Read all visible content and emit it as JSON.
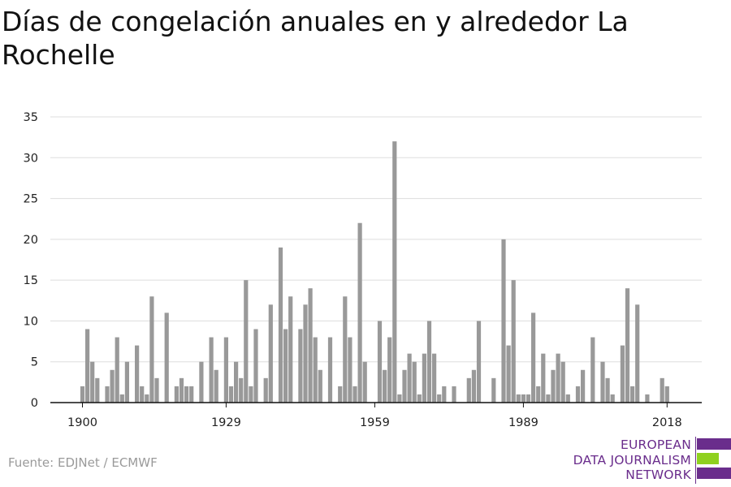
{
  "title": "Días de congelación anuales en y alrededor La Rochelle",
  "source": "Fuente: EDJNet / ECMWF",
  "logo": {
    "lines": [
      "EUROPEAN",
      "DATA JOURNALISM",
      "NETWORK"
    ],
    "colors": {
      "purple": "#6a2d8c",
      "green": "#8fd11f"
    }
  },
  "chart_data": {
    "type": "bar",
    "title": "Días de congelación anuales en y alrededor La Rochelle",
    "xlabel": "",
    "ylabel": "",
    "x": [
      1900,
      1901,
      1902,
      1903,
      1904,
      1905,
      1906,
      1907,
      1908,
      1909,
      1910,
      1911,
      1912,
      1913,
      1914,
      1915,
      1916,
      1917,
      1918,
      1919,
      1920,
      1921,
      1922,
      1923,
      1924,
      1925,
      1926,
      1927,
      1928,
      1929,
      1930,
      1931,
      1932,
      1933,
      1934,
      1935,
      1936,
      1937,
      1938,
      1939,
      1940,
      1941,
      1942,
      1943,
      1944,
      1945,
      1946,
      1947,
      1948,
      1949,
      1950,
      1951,
      1952,
      1953,
      1954,
      1955,
      1956,
      1957,
      1958,
      1959,
      1960,
      1961,
      1962,
      1963,
      1964,
      1965,
      1966,
      1967,
      1968,
      1969,
      1970,
      1971,
      1972,
      1973,
      1974,
      1975,
      1976,
      1977,
      1978,
      1979,
      1980,
      1981,
      1982,
      1983,
      1984,
      1985,
      1986,
      1987,
      1988,
      1989,
      1990,
      1991,
      1992,
      1993,
      1994,
      1995,
      1996,
      1997,
      1998,
      1999,
      2000,
      2001,
      2002,
      2003,
      2004,
      2005,
      2006,
      2007,
      2008,
      2009,
      2010,
      2011,
      2012,
      2013,
      2014,
      2015,
      2016,
      2017,
      2018,
      2019,
      2020
    ],
    "values": [
      2,
      9,
      5,
      3,
      0,
      2,
      4,
      8,
      1,
      5,
      0,
      7,
      2,
      1,
      13,
      3,
      0,
      11,
      0,
      2,
      3,
      2,
      2,
      0,
      5,
      0,
      8,
      4,
      0,
      8,
      2,
      5,
      3,
      15,
      2,
      9,
      0,
      3,
      12,
      0,
      19,
      9,
      13,
      0,
      9,
      12,
      14,
      8,
      4,
      0,
      8,
      0,
      2,
      13,
      8,
      2,
      22,
      5,
      0,
      0,
      10,
      4,
      8,
      32,
      1,
      4,
      6,
      5,
      1,
      6,
      10,
      6,
      1,
      2,
      0,
      2,
      0,
      0,
      3,
      4,
      10,
      0,
      0,
      3,
      0,
      20,
      7,
      15,
      1,
      1,
      1,
      11,
      2,
      6,
      1,
      4,
      6,
      5,
      1,
      0,
      2,
      4,
      0,
      8,
      0,
      5,
      3,
      1,
      0,
      7,
      14,
      2,
      12,
      0,
      1,
      0,
      0,
      3,
      2,
      0,
      0
    ],
    "ylim": [
      0,
      35
    ],
    "xlim": [
      1900,
      2020
    ],
    "yticks": [
      0,
      5,
      10,
      15,
      20,
      25,
      30,
      35
    ],
    "xticks": [
      1900,
      1929,
      1959,
      1989,
      2018
    ],
    "grid": true,
    "legend": "none",
    "colors": {
      "bar": "#999999",
      "grid": "#dddddd",
      "axis": "#111111",
      "text": "#222222"
    }
  }
}
